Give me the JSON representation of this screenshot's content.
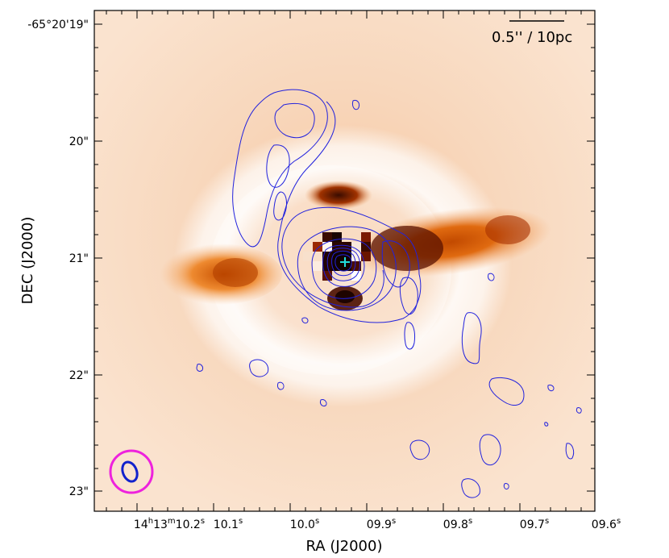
{
  "figure": {
    "scalebar_label": "0.5'' / 10pc",
    "xlabel": "RA (J2000)",
    "ylabel": "DEC (J2000)",
    "dec_ticks": [
      "-65°20'19\"",
      "20\"",
      "21\"",
      "22\"",
      "23\""
    ],
    "ra_ticks": [
      {
        "main": "14",
        "h": "h",
        "m1": "13",
        "m": "m",
        "s1": "10.2",
        "s": "s"
      },
      {
        "main": "10.1",
        "s": "s"
      },
      {
        "main": "10.0",
        "s": "s"
      },
      {
        "main": "09.9",
        "s": "s"
      },
      {
        "main": "09.8",
        "s": "s"
      },
      {
        "main": "09.7",
        "s": "s"
      },
      {
        "main": "09.6",
        "s": "s"
      }
    ]
  },
  "colors": {
    "contour": "#2222dd",
    "beam_outer": "#ee22dd",
    "beam_inner": "#1122cc",
    "center_marker": "#22dddd"
  }
}
